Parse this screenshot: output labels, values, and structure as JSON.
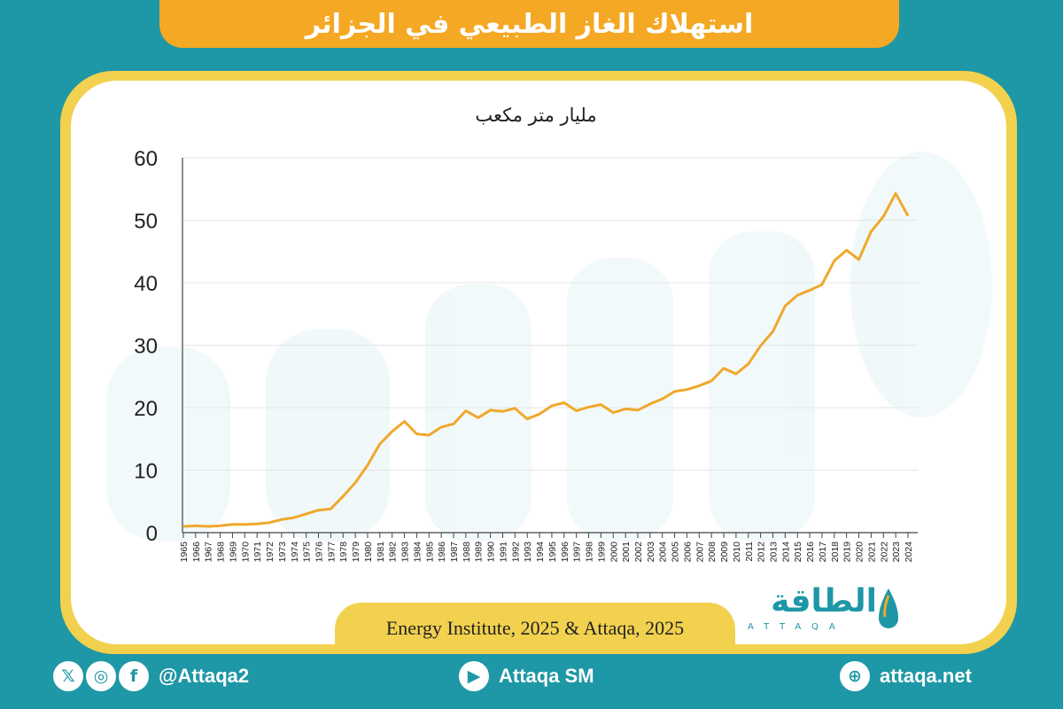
{
  "header": {
    "title": "استهلاك الغاز الطبيعي في الجزائر"
  },
  "chart": {
    "unit_label": "مليار متر مكعب",
    "source": "Energy Institute, 2025 & Attaqa, 2025"
  },
  "logo": {
    "name": "الطاقة",
    "subtitle": "ATTAQA"
  },
  "footer": {
    "social_handle": "@Attaqa2",
    "youtube": "Attaqa SM",
    "website": "attaqa.net",
    "icons": [
      "x-icon",
      "instagram-icon",
      "facebook-icon",
      "youtube-icon",
      "globe-icon"
    ]
  },
  "colors": {
    "background": "#1e97a6",
    "accent": "#f4a823",
    "frame": "#f2d14f",
    "line": "#f0a82c"
  },
  "chart_data": {
    "type": "line",
    "title": "",
    "xlabel": "",
    "ylabel": "مليار متر مكعب",
    "ylim": [
      0,
      60
    ],
    "yticks": [
      0,
      10,
      20,
      30,
      40,
      50,
      60
    ],
    "grid": true,
    "x": [
      1965,
      1966,
      1967,
      1968,
      1969,
      1970,
      1971,
      1972,
      1973,
      1974,
      1975,
      1976,
      1977,
      1978,
      1979,
      1980,
      1981,
      1982,
      1983,
      1984,
      1985,
      1986,
      1987,
      1988,
      1989,
      1990,
      1991,
      1992,
      1993,
      1994,
      1995,
      1996,
      1997,
      1998,
      1999,
      2000,
      2001,
      2002,
      2003,
      2004,
      2005,
      2006,
      2007,
      2008,
      2009,
      2010,
      2011,
      2012,
      2013,
      2014,
      2015,
      2016,
      2017,
      2018,
      2019,
      2020,
      2021,
      2022,
      2023,
      2024
    ],
    "series": [
      {
        "name": "",
        "values": [
          1.0,
          1.1,
          1.0,
          1.1,
          1.3,
          1.3,
          1.4,
          1.6,
          2.1,
          2.4,
          3.0,
          3.6,
          3.8,
          5.8,
          8.0,
          10.8,
          14.2,
          16.2,
          17.8,
          15.8,
          15.6,
          16.9,
          17.4,
          19.5,
          18.4,
          19.6,
          19.4,
          19.9,
          18.2,
          19.0,
          20.3,
          20.8,
          19.5,
          20.1,
          20.5,
          19.2,
          19.8,
          19.6,
          20.6,
          21.4,
          22.6,
          22.9,
          23.5,
          24.3,
          26.3,
          25.4,
          27.0,
          29.9,
          32.2,
          36.3,
          38.0,
          38.8,
          39.7,
          43.5,
          45.2,
          43.7,
          48.2,
          50.6,
          54.3,
          50.7
        ]
      }
    ]
  }
}
